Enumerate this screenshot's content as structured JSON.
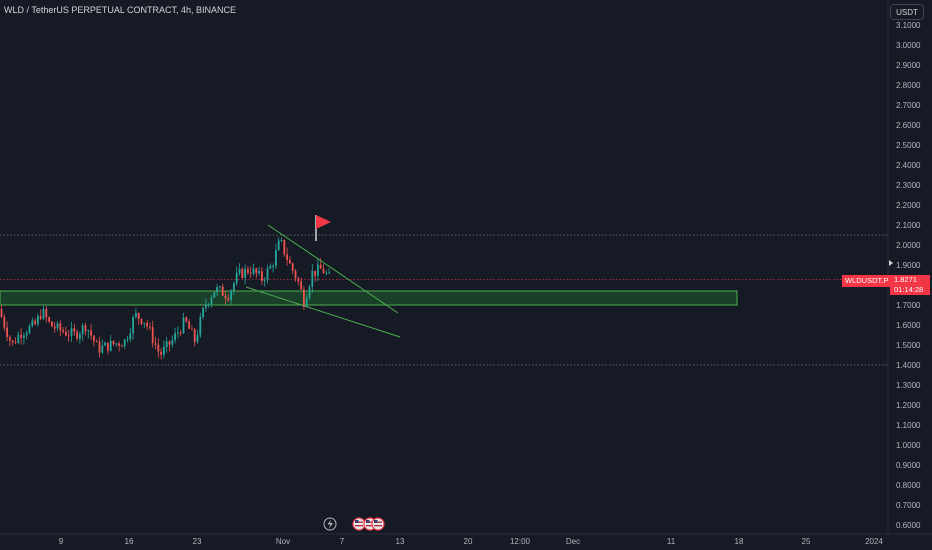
{
  "header": {
    "title": "WLD / TetherUS PERPETUAL CONTRACT, 4h, BINANCE",
    "currency_button": "USDT"
  },
  "price_label": {
    "symbol": "WLDUSDT.P",
    "price": "1.8271",
    "countdown": "01:14:28"
  },
  "colors": {
    "background": "#161a25",
    "up": "#26a69a",
    "down": "#ef5350",
    "zone_fill": "#1e4d2b",
    "zone_border": "#4caf50",
    "trendline": "#4caf50",
    "flag": "#f23645"
  },
  "chart_data": {
    "type": "candlestick",
    "y_axis": {
      "ticks": [
        "3.1000",
        "3.0000",
        "2.9000",
        "2.8000",
        "2.7000",
        "2.6000",
        "2.5000",
        "2.4000",
        "2.3000",
        "2.2000",
        "2.1000",
        "2.0000",
        "1.9000",
        "1.8000",
        "1.7000",
        "1.6000",
        "1.5000",
        "1.4000",
        "1.3000",
        "1.2000",
        "1.1000",
        "1.0000",
        "0.9000",
        "0.8000",
        "0.7000",
        "0.6000"
      ],
      "range": [
        0.6,
        3.1
      ]
    },
    "x_axis": {
      "ticks": [
        "9",
        "16",
        "23",
        "Nov",
        "7",
        "13",
        "20",
        "12:00",
        "Dec",
        "11",
        "18",
        "25",
        "2024"
      ]
    },
    "horizontal_levels": [
      2.05,
      1.4
    ],
    "support_zone": [
      1.7,
      1.77
    ],
    "current_price": 1.8271,
    "ohlc_4h": []
  }
}
